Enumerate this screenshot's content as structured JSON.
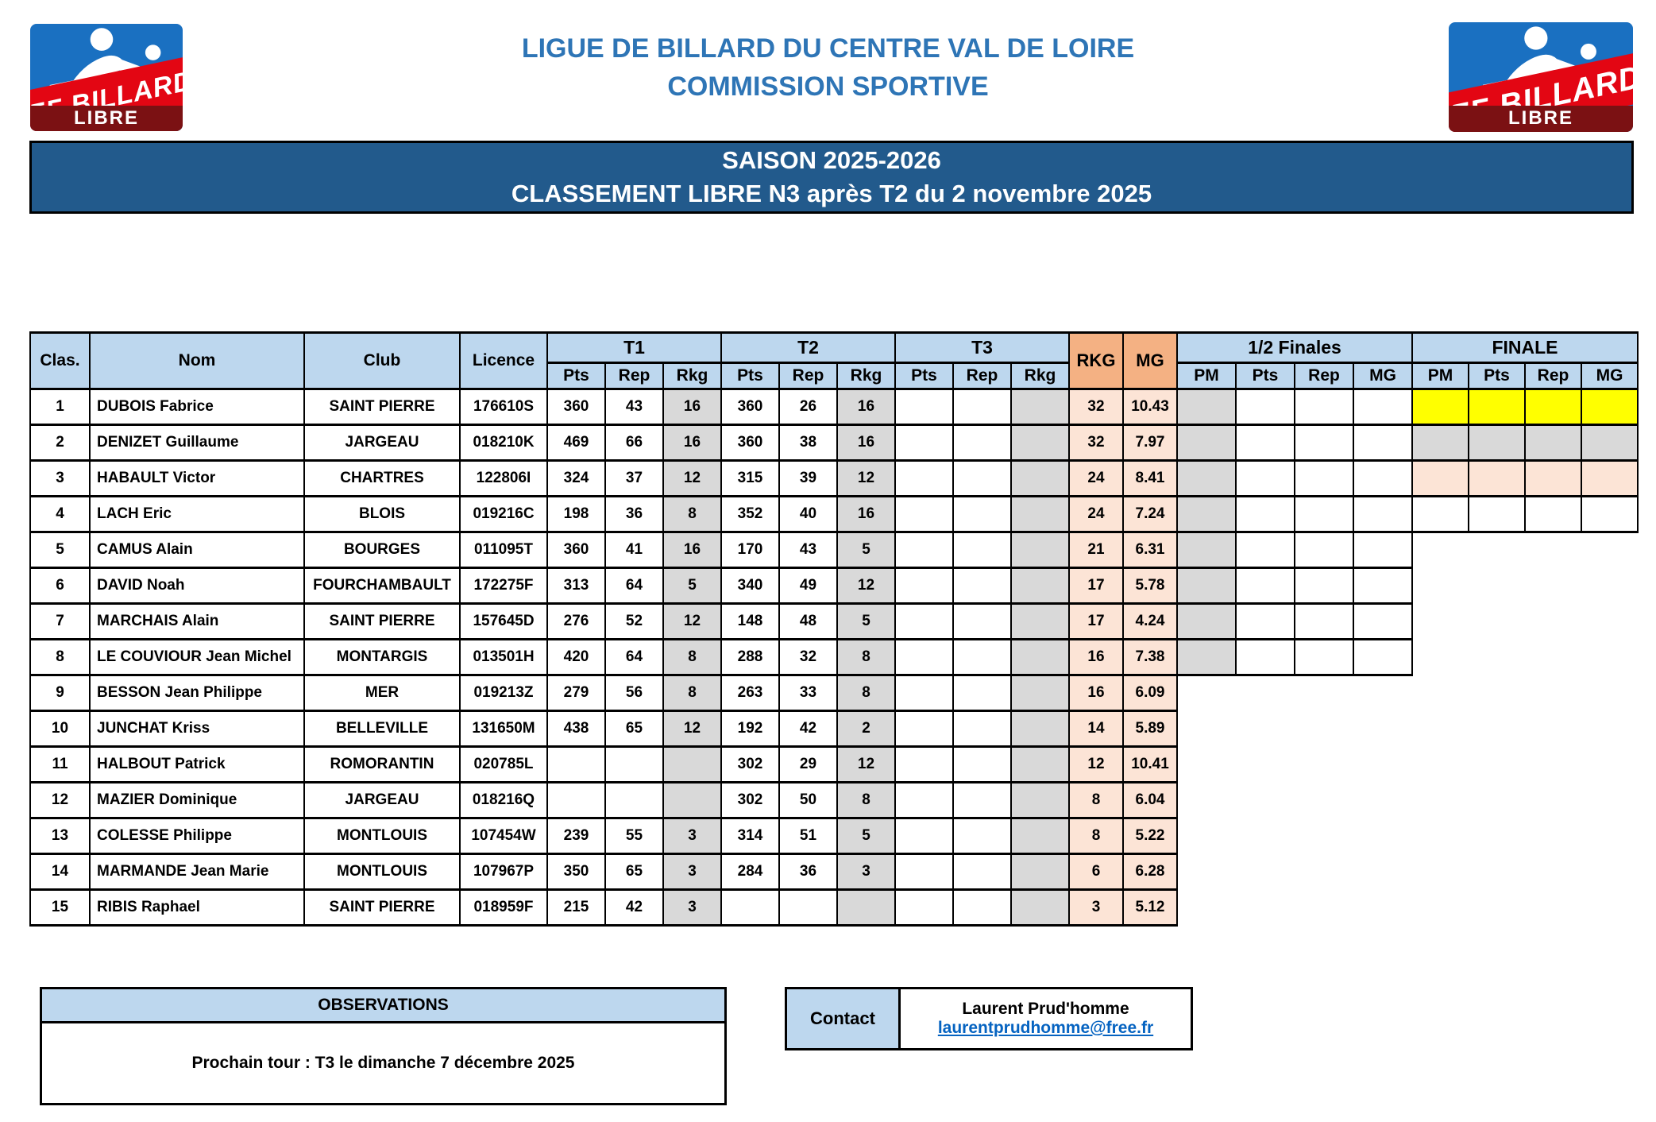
{
  "logo": {
    "band_text": "FF BILLARD",
    "strip_text": "LIBRE"
  },
  "header": {
    "title_line1": "LIGUE DE BILLARD DU CENTRE VAL DE LOIRE",
    "title_line2": "COMMISSION SPORTIVE"
  },
  "banner": {
    "line1": "SAISON 2025-2026",
    "line2": "CLASSEMENT LIBRE N3 après T2 du 2 novembre 2025"
  },
  "table": {
    "columns": {
      "clas": "Clas.",
      "nom": "Nom",
      "club": "Club",
      "licence": "Licence",
      "t1": "T1",
      "t2": "T2",
      "t3": "T3",
      "rkg": "RKG",
      "mg": "MG",
      "demi": "1/2 Finales",
      "finale": "FINALE",
      "pts": "Pts",
      "rep": "Rep",
      "rkg_sub": "Rkg",
      "pm": "PM",
      "mg_sub": "MG"
    },
    "rows": [
      {
        "clas": "1",
        "nom": "DUBOIS Fabrice",
        "club": "SAINT PIERRE",
        "licence": "176610S",
        "t1": [
          "360",
          "43",
          "16"
        ],
        "t2": [
          "360",
          "26",
          "16"
        ],
        "t3": [
          "",
          "",
          ""
        ],
        "rkg": "32",
        "mg": "10.43",
        "demi": true,
        "finale": "yellow"
      },
      {
        "clas": "2",
        "nom": "DENIZET Guillaume",
        "club": "JARGEAU",
        "licence": "018210K",
        "t1": [
          "469",
          "66",
          "16"
        ],
        "t2": [
          "360",
          "38",
          "16"
        ],
        "t3": [
          "",
          "",
          ""
        ],
        "rkg": "32",
        "mg": "7.97",
        "demi": true,
        "finale": "gray"
      },
      {
        "clas": "3",
        "nom": "HABAULT Victor",
        "club": "CHARTRES",
        "licence": "122806I",
        "t1": [
          "324",
          "37",
          "12"
        ],
        "t2": [
          "315",
          "39",
          "12"
        ],
        "t3": [
          "",
          "",
          ""
        ],
        "rkg": "24",
        "mg": "8.41",
        "demi": true,
        "finale": "salmon"
      },
      {
        "clas": "4",
        "nom": "LACH Eric",
        "club": "BLOIS",
        "licence": "019216C",
        "t1": [
          "198",
          "36",
          "8"
        ],
        "t2": [
          "352",
          "40",
          "16"
        ],
        "t3": [
          "",
          "",
          ""
        ],
        "rkg": "24",
        "mg": "7.24",
        "demi": true,
        "finale": "white"
      },
      {
        "clas": "5",
        "nom": "CAMUS Alain",
        "club": "BOURGES",
        "licence": "011095T",
        "t1": [
          "360",
          "41",
          "16"
        ],
        "t2": [
          "170",
          "43",
          "5"
        ],
        "t3": [
          "",
          "",
          ""
        ],
        "rkg": "21",
        "mg": "6.31",
        "demi": true,
        "finale": null
      },
      {
        "clas": "6",
        "nom": "DAVID Noah",
        "club": "FOURCHAMBAULT",
        "licence": "172275F",
        "t1": [
          "313",
          "64",
          "5"
        ],
        "t2": [
          "340",
          "49",
          "12"
        ],
        "t3": [
          "",
          "",
          ""
        ],
        "rkg": "17",
        "mg": "5.78",
        "demi": true,
        "finale": null
      },
      {
        "clas": "7",
        "nom": "MARCHAIS Alain",
        "club": "SAINT PIERRE",
        "licence": "157645D",
        "t1": [
          "276",
          "52",
          "12"
        ],
        "t2": [
          "148",
          "48",
          "5"
        ],
        "t3": [
          "",
          "",
          ""
        ],
        "rkg": "17",
        "mg": "4.24",
        "demi": true,
        "finale": null
      },
      {
        "clas": "8",
        "nom": "LE COUVIOUR Jean Michel",
        "club": "MONTARGIS",
        "licence": "013501H",
        "t1": [
          "420",
          "64",
          "8"
        ],
        "t2": [
          "288",
          "32",
          "8"
        ],
        "t3": [
          "",
          "",
          ""
        ],
        "rkg": "16",
        "mg": "7.38",
        "demi": true,
        "finale": null
      },
      {
        "clas": "9",
        "nom": "BESSON Jean Philippe",
        "club": "MER",
        "licence": "019213Z",
        "t1": [
          "279",
          "56",
          "8"
        ],
        "t2": [
          "263",
          "33",
          "8"
        ],
        "t3": [
          "",
          "",
          ""
        ],
        "rkg": "16",
        "mg": "6.09",
        "demi": false,
        "finale": null
      },
      {
        "clas": "10",
        "nom": "JUNCHAT Kriss",
        "club": "BELLEVILLE",
        "licence": "131650M",
        "t1": [
          "438",
          "65",
          "12"
        ],
        "t2": [
          "192",
          "42",
          "2"
        ],
        "t3": [
          "",
          "",
          ""
        ],
        "rkg": "14",
        "mg": "5.89",
        "demi": false,
        "finale": null
      },
      {
        "clas": "11",
        "nom": "HALBOUT Patrick",
        "club": "ROMORANTIN",
        "licence": "020785L",
        "t1": [
          "",
          "",
          ""
        ],
        "t2": [
          "302",
          "29",
          "12"
        ],
        "t3": [
          "",
          "",
          ""
        ],
        "rkg": "12",
        "mg": "10.41",
        "demi": false,
        "finale": null
      },
      {
        "clas": "12",
        "nom": "MAZIER Dominique",
        "club": "JARGEAU",
        "licence": "018216Q",
        "t1": [
          "",
          "",
          ""
        ],
        "t2": [
          "302",
          "50",
          "8"
        ],
        "t3": [
          "",
          "",
          ""
        ],
        "rkg": "8",
        "mg": "6.04",
        "demi": false,
        "finale": null
      },
      {
        "clas": "13",
        "nom": "COLESSE Philippe",
        "club": "MONTLOUIS",
        "licence": "107454W",
        "t1": [
          "239",
          "55",
          "3"
        ],
        "t2": [
          "314",
          "51",
          "5"
        ],
        "t3": [
          "",
          "",
          ""
        ],
        "rkg": "8",
        "mg": "5.22",
        "demi": false,
        "finale": null
      },
      {
        "clas": "14",
        "nom": "MARMANDE Jean Marie",
        "club": "MONTLOUIS",
        "licence": "107967P",
        "t1": [
          "350",
          "65",
          "3"
        ],
        "t2": [
          "284",
          "36",
          "3"
        ],
        "t3": [
          "",
          "",
          ""
        ],
        "rkg": "6",
        "mg": "6.28",
        "demi": false,
        "finale": null
      },
      {
        "clas": "15",
        "nom": "RIBIS Raphael",
        "club": "SAINT PIERRE",
        "licence": "018959F",
        "t1": [
          "215",
          "42",
          "3"
        ],
        "t2": [
          "",
          "",
          ""
        ],
        "t3": [
          "",
          "",
          ""
        ],
        "rkg": "3",
        "mg": "5.12",
        "demi": false,
        "finale": null
      }
    ]
  },
  "observations": {
    "title": "OBSERVATIONS",
    "text": "Prochain tour : T3 le dimanche 7 décembre 2025"
  },
  "contact": {
    "label": "Contact",
    "name": "Laurent Prud'homme",
    "email": "laurentprudhomme@free.fr"
  },
  "colors": {
    "header_blue": "#BDD7EE",
    "header_orange": "#F4B183",
    "cell_salmon": "#FCE4D6",
    "cell_gray": "#D9D9D9",
    "cell_yellow": "#FFFF00",
    "banner_blue": "#225A8C",
    "title_blue": "#2E75B6",
    "link_blue": "#0563C1",
    "logo_blue": "#1A70C1",
    "logo_red": "#E30613",
    "logo_maroon": "#7B1113"
  }
}
